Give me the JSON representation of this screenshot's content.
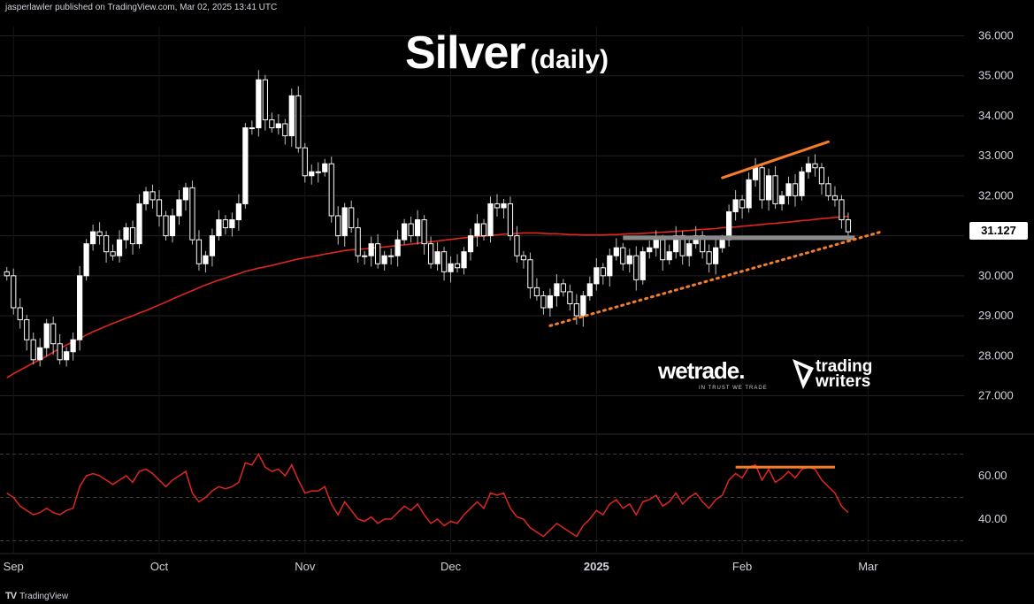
{
  "header": {
    "publisher": "jasperlawler published on TradingView.com, Mar 02, 2025 13:41 UTC"
  },
  "title": {
    "main": "Silver",
    "sub": "(daily)"
  },
  "branding": {
    "wetrade": "wetrade.",
    "wetrade_tagline": "IN TRUST WE TRADE",
    "trading_writers_line1": "trading",
    "trading_writers_line2": "writers"
  },
  "footer": {
    "logo_text": "TV",
    "label": "TradingView"
  },
  "colors": {
    "background": "#000000",
    "candle_up": "#ffffff",
    "candle_down": "#ffffff",
    "ma": "#e0261f",
    "rsi": "#e0261f",
    "trend": "#f57d29",
    "support": "#8a8a8a",
    "grid": "#222222"
  },
  "price_badge": "31.127",
  "chart_data": {
    "type": "candlestick",
    "price_axis": {
      "ylim": [
        26.6,
        36.3
      ],
      "ticks": [
        "27.000",
        "28.000",
        "29.000",
        "30.000",
        "31.000",
        "32.000",
        "33.000",
        "34.000",
        "35.000",
        "36.000"
      ]
    },
    "x_axis": {
      "labels": [
        "Sep",
        "Oct",
        "Nov",
        "Dec",
        "2025",
        "Feb",
        "Mar"
      ],
      "label_index": [
        1,
        23,
        45,
        67,
        89,
        111,
        130
      ],
      "n_slots": 145
    },
    "close": [
      30.0,
      29.2,
      28.9,
      28.4,
      27.9,
      28.2,
      28.8,
      28.3,
      27.9,
      28.1,
      28.4,
      30.0,
      30.8,
      31.1,
      31.0,
      30.6,
      30.5,
      30.9,
      31.2,
      30.8,
      31.8,
      32.1,
      31.9,
      31.5,
      31.0,
      31.5,
      31.9,
      32.2,
      30.9,
      30.3,
      30.5,
      31.0,
      31.4,
      31.2,
      31.4,
      31.8,
      33.7,
      33.7,
      34.9,
      33.9,
      33.7,
      33.8,
      33.5,
      34.5,
      33.2,
      32.5,
      32.6,
      32.6,
      32.8,
      31.5,
      31.0,
      31.7,
      31.2,
      30.5,
      30.5,
      30.8,
      30.3,
      30.5,
      30.5,
      30.9,
      31.3,
      31.0,
      31.4,
      30.8,
      30.3,
      30.6,
      30.1,
      30.3,
      30.2,
      30.6,
      31.0,
      31.3,
      31.0,
      31.8,
      31.7,
      31.8,
      31.0,
      30.5,
      30.4,
      29.7,
      29.5,
      29.2,
      29.5,
      29.8,
      29.6,
      29.3,
      29.0,
      29.5,
      29.8,
      30.2,
      30.0,
      30.5,
      30.7,
      30.3,
      30.5,
      29.9,
      30.6,
      30.7,
      30.9,
      30.4,
      30.6,
      31.0,
      30.5,
      30.8,
      31.0,
      30.6,
      30.3,
      30.7,
      30.9,
      31.6,
      31.9,
      31.7,
      32.4,
      32.7,
      31.9,
      32.5,
      31.8,
      32.0,
      32.3,
      32.0,
      32.6,
      32.8,
      32.7,
      32.3,
      32.0,
      31.9,
      31.4,
      31.1,
      null,
      null,
      null,
      null,
      null,
      null,
      null,
      null,
      null,
      null,
      null,
      null,
      null,
      null,
      null,
      null,
      null
    ],
    "ma": [
      27.45,
      27.55,
      27.64,
      27.73,
      27.82,
      27.9,
      27.99,
      28.09,
      28.18,
      28.27,
      28.35,
      28.43,
      28.52,
      28.6,
      28.67,
      28.74,
      28.81,
      28.87,
      28.94,
      29.0,
      29.07,
      29.13,
      29.2,
      29.27,
      29.34,
      29.42,
      29.49,
      29.56,
      29.63,
      29.7,
      29.77,
      29.83,
      29.89,
      29.94,
      30.0,
      30.05,
      30.11,
      30.15,
      30.19,
      30.22,
      30.26,
      30.3,
      30.34,
      30.38,
      30.42,
      30.45,
      30.48,
      30.51,
      30.54,
      30.57,
      30.6,
      30.63,
      30.65,
      30.66,
      30.67,
      30.69,
      30.71,
      30.72,
      30.74,
      30.76,
      30.77,
      30.79,
      30.81,
      30.83,
      30.85,
      30.87,
      30.89,
      30.91,
      30.93,
      30.95,
      30.96,
      30.98,
      30.99,
      31.01,
      31.02,
      31.04,
      31.05,
      31.06,
      31.07,
      31.07,
      31.07,
      31.06,
      31.05,
      31.05,
      31.04,
      31.03,
      31.03,
      31.02,
      31.02,
      31.02,
      31.02,
      31.03,
      31.03,
      31.04,
      31.05,
      31.05,
      31.06,
      31.07,
      31.08,
      31.09,
      31.1,
      31.11,
      31.12,
      31.13,
      31.15,
      31.16,
      31.17,
      31.18,
      31.2,
      31.21,
      31.22,
      31.24,
      31.25,
      31.27,
      31.28,
      31.3,
      31.31,
      31.33,
      31.34,
      31.36,
      31.38,
      31.39,
      31.41,
      31.43,
      31.44,
      31.46,
      31.47,
      31.49
    ],
    "rsi_axis": {
      "ylim": [
        25,
        75
      ],
      "ticks": [
        "40.00",
        "60.00"
      ]
    },
    "rsi": [
      52,
      50,
      46,
      44,
      42,
      43,
      45,
      43,
      42,
      44,
      45,
      55,
      60,
      61,
      60,
      58,
      56,
      58,
      60,
      57,
      62,
      63,
      61,
      58,
      55,
      58,
      60,
      62,
      52,
      48,
      50,
      53,
      55,
      54,
      55,
      57,
      66,
      65,
      70,
      64,
      62,
      63,
      60,
      65,
      58,
      52,
      53,
      53,
      55,
      47,
      42,
      48,
      44,
      40,
      39,
      41,
      38,
      40,
      40,
      43,
      46,
      44,
      47,
      42,
      38,
      40,
      37,
      39,
      38,
      42,
      45,
      48,
      45,
      52,
      51,
      52,
      45,
      41,
      40,
      36,
      34,
      32,
      35,
      38,
      36,
      34,
      32,
      37,
      40,
      44,
      42,
      47,
      49,
      45,
      47,
      42,
      48,
      49,
      51,
      46,
      48,
      52,
      47,
      50,
      52,
      48,
      45,
      49,
      51,
      58,
      61,
      59,
      64,
      65,
      58,
      63,
      57,
      59,
      62,
      59,
      63,
      64,
      63,
      58,
      55,
      52,
      46,
      43,
      null,
      null,
      null,
      null,
      null,
      null,
      null,
      null,
      null,
      null,
      null,
      null,
      null,
      null,
      null,
      null,
      null
    ],
    "annotations": {
      "upper_trend": {
        "x": [
          108,
          124
        ],
        "y": [
          32.45,
          33.35
        ]
      },
      "lower_trend": {
        "x": [
          82,
          132
        ],
        "y": [
          28.75,
          31.1
        ]
      },
      "support_line": {
        "x": [
          93,
          128
        ],
        "y": 30.95
      },
      "rsi_resistance": {
        "x": [
          110,
          125
        ],
        "y": 64
      }
    }
  }
}
